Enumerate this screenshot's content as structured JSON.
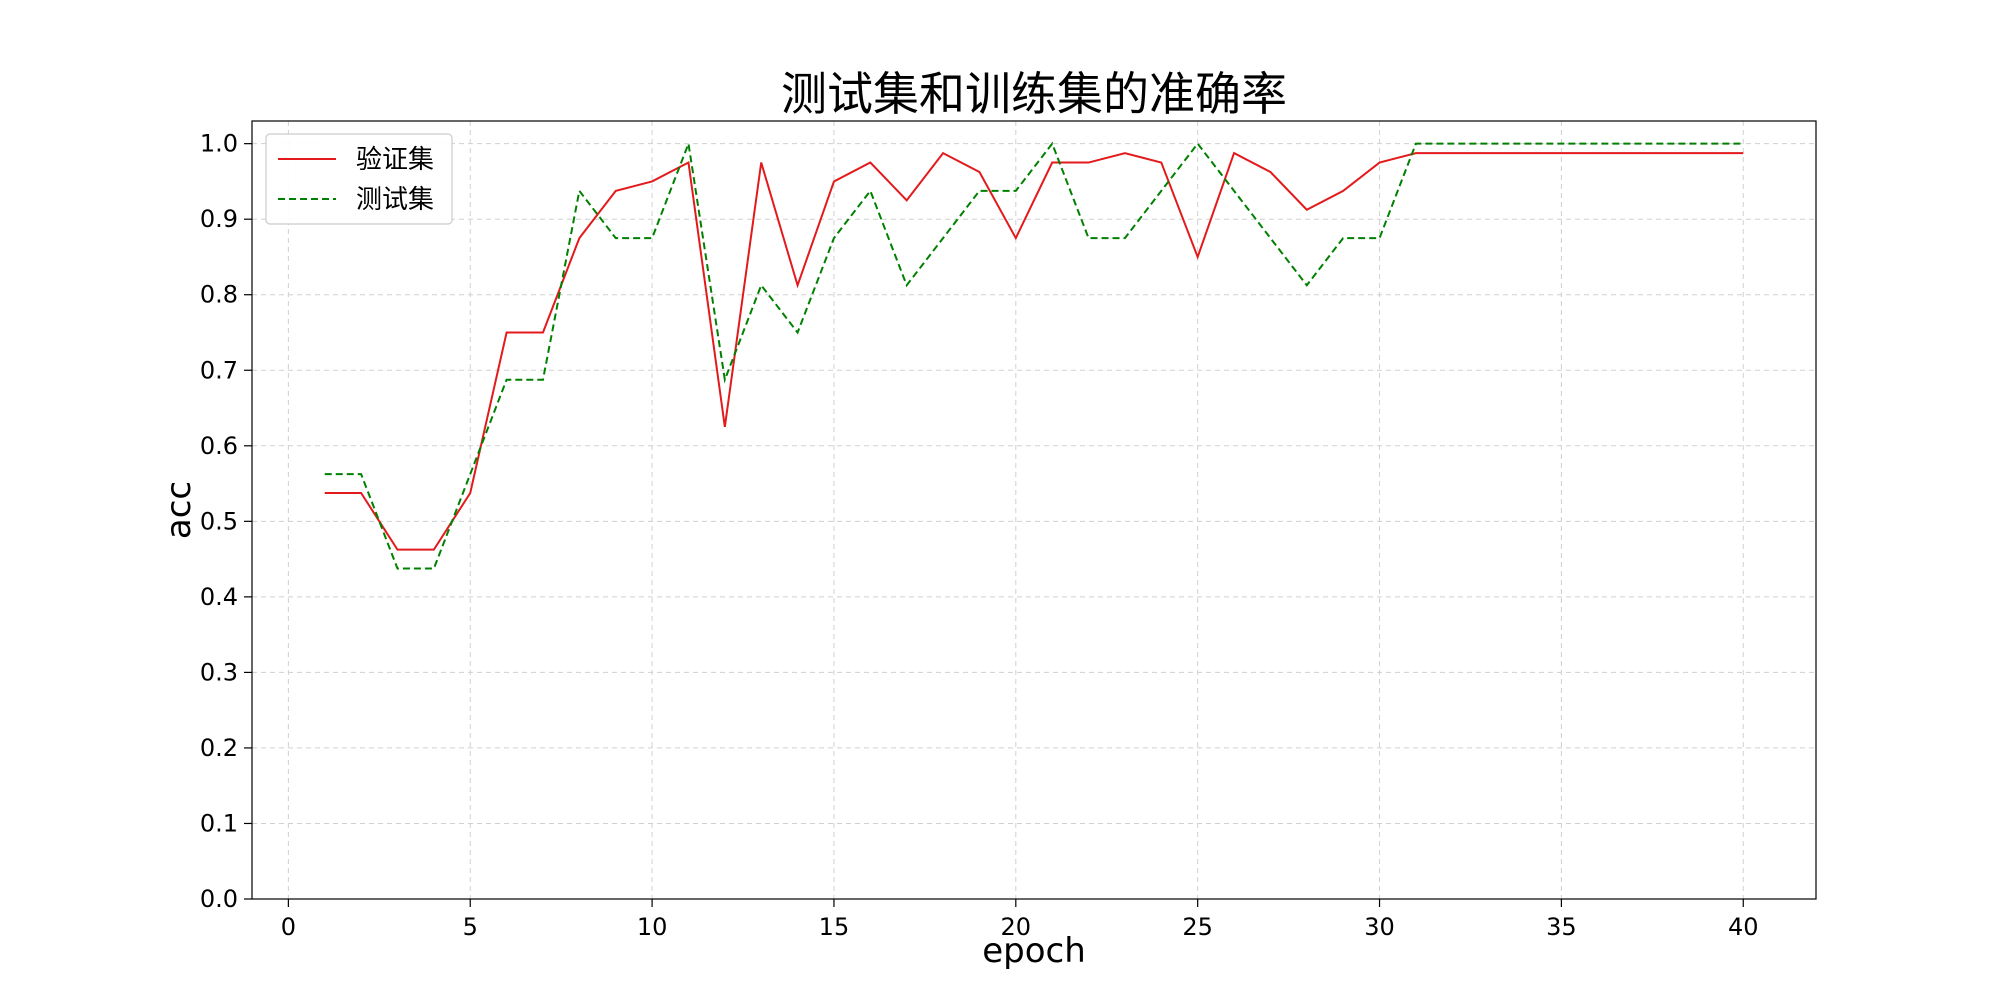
{
  "chart_data": {
    "type": "line",
    "title": "测试集和训练集的准确率",
    "xlabel": "epoch",
    "ylabel": "acc",
    "xlim": [
      -1,
      42
    ],
    "ylim": [
      0.0,
      1.03
    ],
    "xticks": [
      0,
      5,
      10,
      15,
      20,
      25,
      30,
      35,
      40
    ],
    "yticks": [
      0.0,
      0.1,
      0.2,
      0.3,
      0.4,
      0.5,
      0.6,
      0.7,
      0.8,
      0.9,
      1.0
    ],
    "xtick_labels": [
      "0",
      "5",
      "10",
      "15",
      "20",
      "25",
      "30",
      "35",
      "40"
    ],
    "ytick_labels": [
      "0.0",
      "0.1",
      "0.2",
      "0.3",
      "0.4",
      "0.5",
      "0.6",
      "0.7",
      "0.8",
      "0.9",
      "1.0"
    ],
    "grid": true,
    "legend_position": "top-left",
    "x": [
      1,
      2,
      3,
      4,
      5,
      6,
      7,
      8,
      9,
      10,
      11,
      12,
      13,
      14,
      15,
      16,
      17,
      18,
      19,
      20,
      21,
      22,
      23,
      24,
      25,
      26,
      27,
      28,
      29,
      30,
      31,
      32,
      33,
      34,
      35,
      36,
      37,
      38,
      39,
      40
    ],
    "series": [
      {
        "name": "验证集",
        "color": "#e31a1c",
        "style": "solid",
        "values": [
          0.5375,
          0.5375,
          0.4625,
          0.4625,
          0.5375,
          0.75,
          0.75,
          0.875,
          0.9375,
          0.95,
          0.975,
          0.625,
          0.975,
          0.8125,
          0.95,
          0.975,
          0.925,
          0.9875,
          0.9625,
          0.875,
          0.975,
          0.975,
          0.9875,
          0.975,
          0.85,
          0.9875,
          0.9625,
          0.9125,
          0.9375,
          0.975,
          0.9875,
          0.9875,
          0.9875,
          0.9875,
          0.9875,
          0.9875,
          0.9875,
          0.9875,
          0.9875,
          0.9875
        ]
      },
      {
        "name": "测试集",
        "color": "#008000",
        "style": "dashed",
        "values": [
          0.5625,
          0.5625,
          0.4375,
          0.4375,
          0.5625,
          0.6875,
          0.6875,
          0.9375,
          0.875,
          0.875,
          1.0,
          0.6875,
          0.8125,
          0.75,
          0.875,
          0.9375,
          0.8125,
          0.875,
          0.9375,
          0.9375,
          1.0,
          0.875,
          0.875,
          0.9375,
          1.0,
          0.9375,
          0.875,
          0.8125,
          0.875,
          0.875,
          1.0,
          1.0,
          1.0,
          1.0,
          1.0,
          1.0,
          1.0,
          1.0,
          1.0,
          1.0
        ]
      }
    ]
  }
}
